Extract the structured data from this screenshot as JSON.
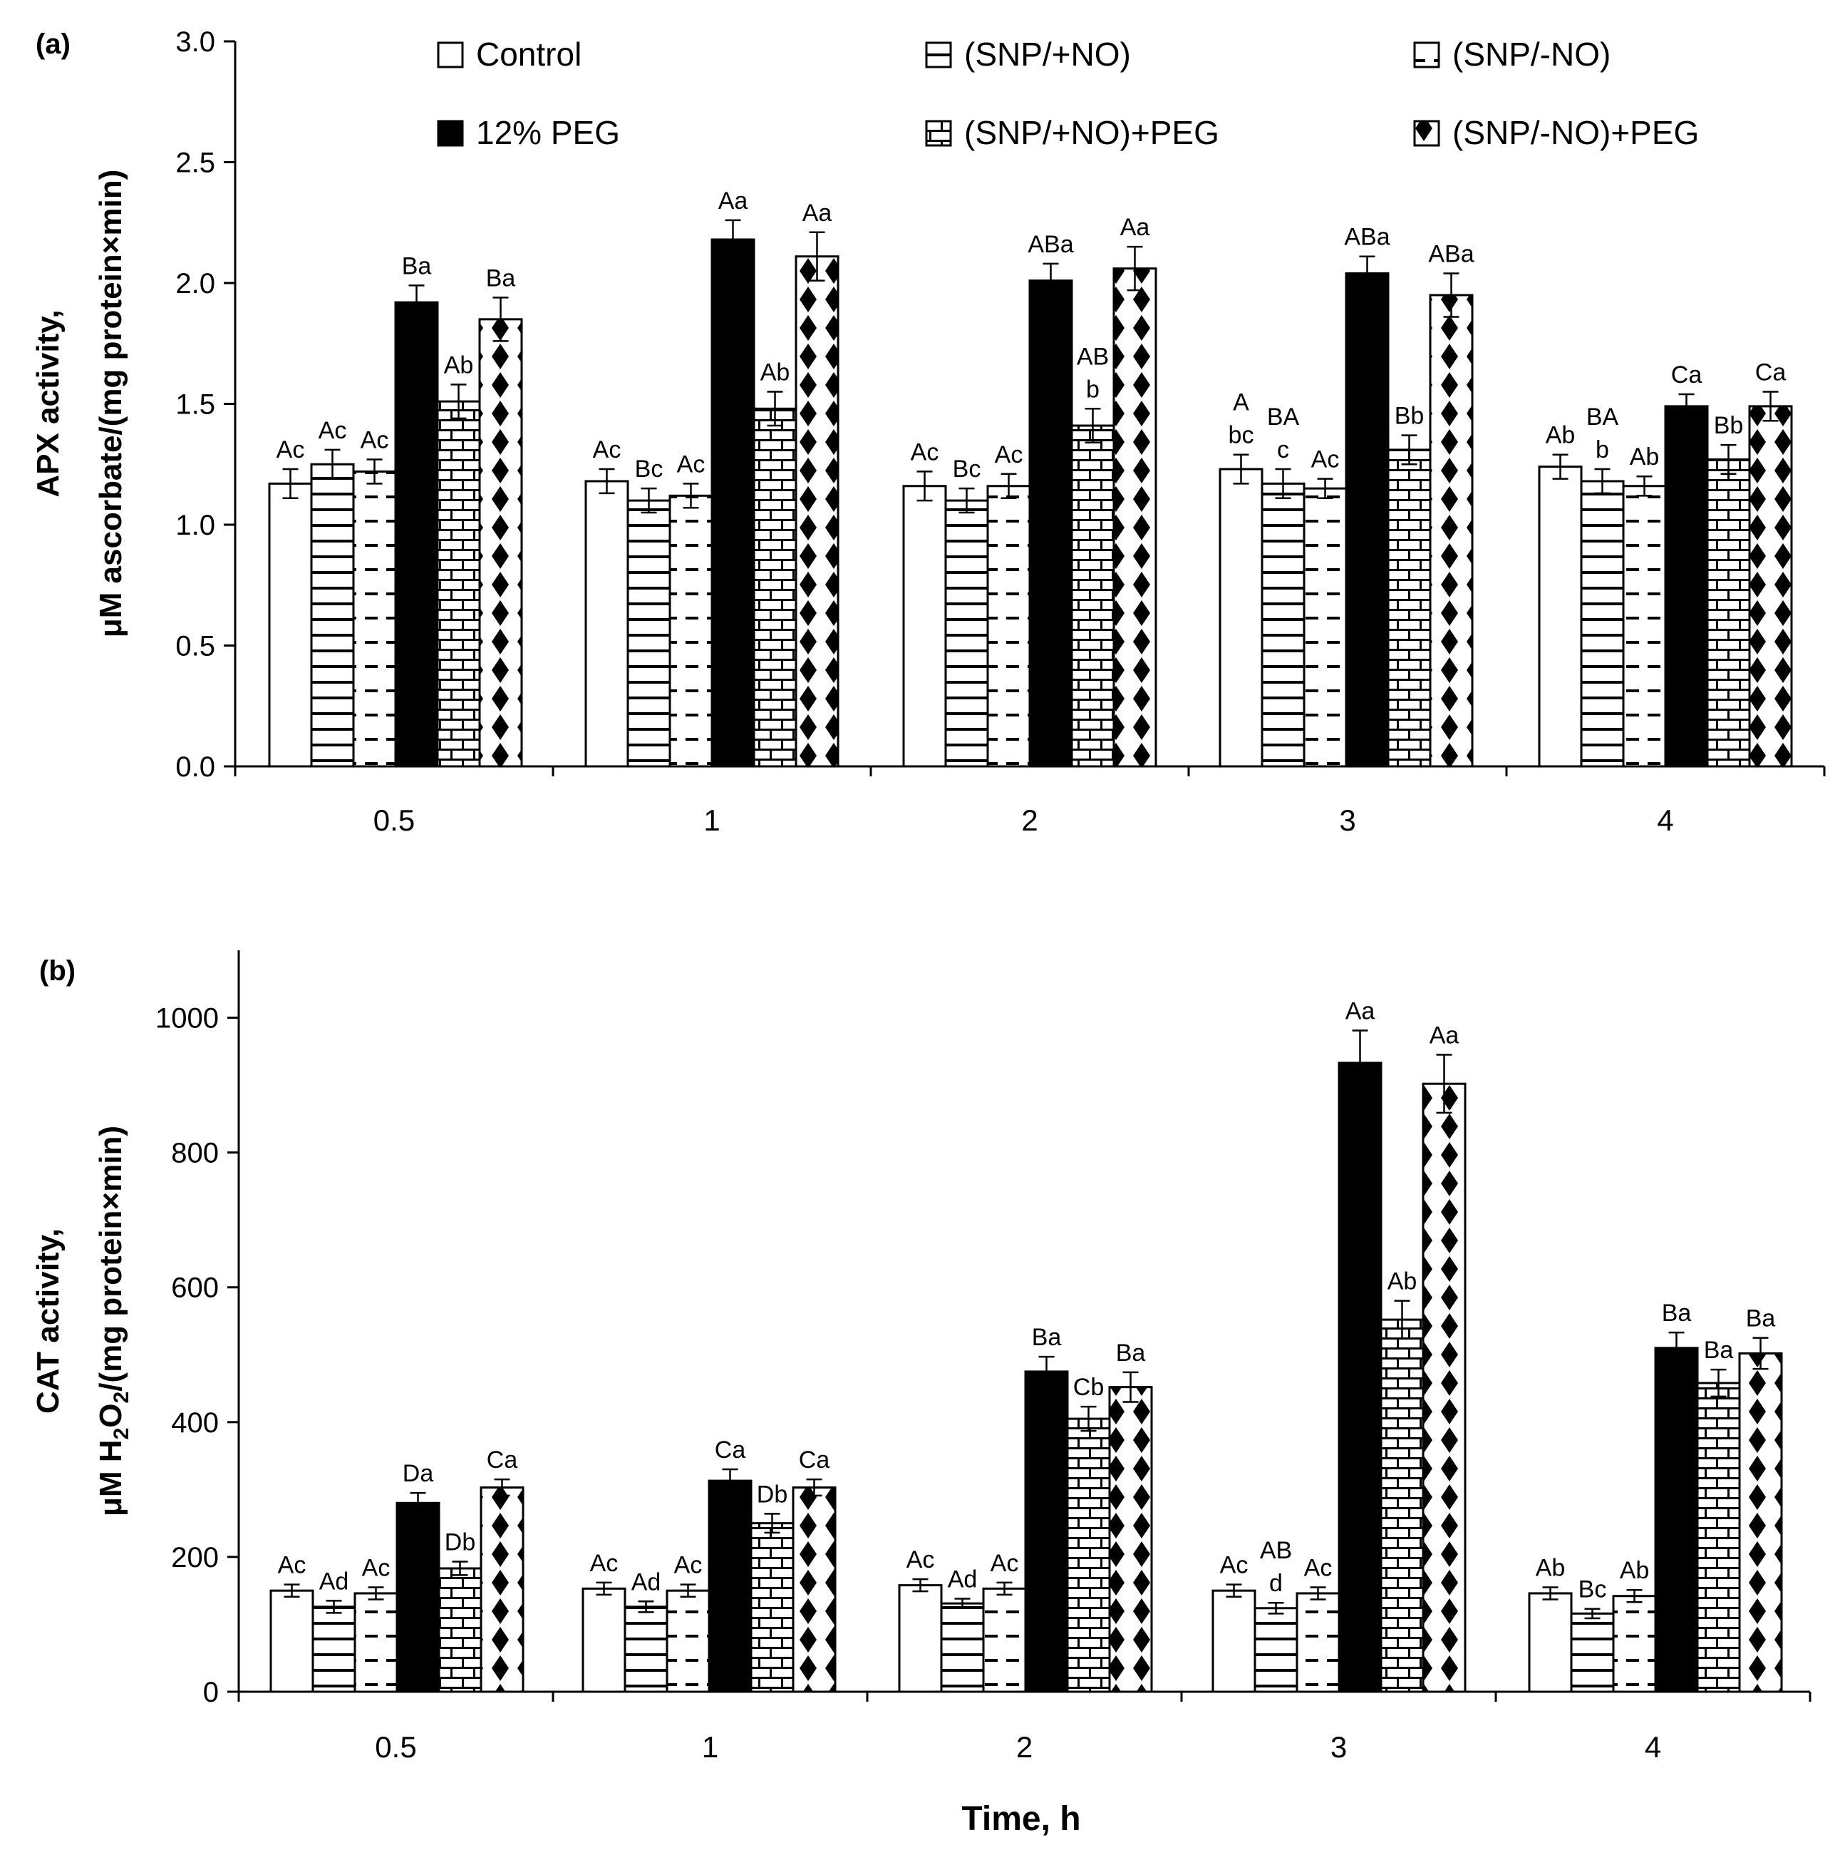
{
  "figure_title": "",
  "colors": {
    "ink": "#000000",
    "background": "#ffffff"
  },
  "legend": {
    "items": [
      {
        "label": "Control",
        "pattern": "white"
      },
      {
        "label": "(SNP/+NO)",
        "pattern": "hlines"
      },
      {
        "label": "(SNP/-NO)",
        "pattern": "dashes"
      },
      {
        "label": "12% PEG",
        "pattern": "black"
      },
      {
        "label": "(SNP/+NO)+PEG",
        "pattern": "bricks"
      },
      {
        "label": "(SNP/-NO)+PEG",
        "pattern": "diamonds"
      }
    ]
  },
  "chart_data": [
    {
      "panel_label": "(a)",
      "type": "bar",
      "title": "",
      "xlabel": "",
      "ylabel_line1": "APX activity,",
      "ylabel_line2": "μM ascorbate/(mg protein×min)",
      "ylim": [
        0,
        3.0
      ],
      "yticks": [
        "0.0",
        "0.5",
        "1.0",
        "1.5",
        "2.0",
        "2.5",
        "3.0"
      ],
      "ytick_values": [
        0,
        0.5,
        1.0,
        1.5,
        2.0,
        2.5,
        3.0
      ],
      "categories": [
        "0.5",
        "1",
        "2",
        "3",
        "4"
      ],
      "series": [
        {
          "name": "Control",
          "values": [
            1.17,
            1.18,
            1.16,
            1.23,
            1.24
          ],
          "errors": [
            0.06,
            0.05,
            0.06,
            0.06,
            0.05
          ],
          "labels": [
            [
              "Ac"
            ],
            [
              "Ac"
            ],
            [
              "Ac"
            ],
            [
              "A",
              "bc"
            ],
            [
              "Ab"
            ]
          ]
        },
        {
          "name": "(SNP/+NO)",
          "values": [
            1.25,
            1.1,
            1.1,
            1.17,
            1.18
          ],
          "errors": [
            0.06,
            0.05,
            0.05,
            0.06,
            0.05
          ],
          "labels": [
            [
              "Ac"
            ],
            [
              "Bc"
            ],
            [
              "Bc"
            ],
            [
              "BA",
              "c"
            ],
            [
              "BA",
              "b"
            ]
          ]
        },
        {
          "name": "(SNP/-NO)",
          "values": [
            1.22,
            1.12,
            1.16,
            1.15,
            1.16
          ],
          "errors": [
            0.05,
            0.05,
            0.05,
            0.04,
            0.04
          ],
          "labels": [
            [
              "Ac"
            ],
            [
              "Ac"
            ],
            [
              "Ac"
            ],
            [
              "Ac"
            ],
            [
              "Ab"
            ]
          ]
        },
        {
          "name": "12% PEG",
          "values": [
            1.92,
            2.18,
            2.01,
            2.04,
            1.49
          ],
          "errors": [
            0.07,
            0.08,
            0.07,
            0.07,
            0.05
          ],
          "labels": [
            [
              "Ba"
            ],
            [
              "Aa"
            ],
            [
              "ABa"
            ],
            [
              "ABa"
            ],
            [
              "Ca"
            ]
          ]
        },
        {
          "name": "(SNP/+NO)+PEG",
          "values": [
            1.51,
            1.48,
            1.41,
            1.31,
            1.27
          ],
          "errors": [
            0.07,
            0.07,
            0.07,
            0.06,
            0.06
          ],
          "labels": [
            [
              "Ab"
            ],
            [
              "Ab"
            ],
            [
              "AB",
              "b"
            ],
            [
              "Bb"
            ],
            [
              "Bb"
            ]
          ]
        },
        {
          "name": "(SNP/-NO)+PEG",
          "values": [
            1.85,
            2.11,
            2.06,
            1.95,
            1.49
          ],
          "errors": [
            0.09,
            0.1,
            0.09,
            0.09,
            0.06
          ],
          "labels": [
            [
              "Ba"
            ],
            [
              "Aa"
            ],
            [
              "Aa"
            ],
            [
              "ABa"
            ],
            [
              "Ca"
            ]
          ]
        }
      ]
    },
    {
      "panel_label": "(b)",
      "type": "bar",
      "title": "",
      "xlabel": "Time, h",
      "ylabel_line1": "CAT activity,",
      "ylabel_line2_prefix": "μM H",
      "ylabel_line2_sub1": "2",
      "ylabel_line2_mid": "O",
      "ylabel_line2_sub2": "2",
      "ylabel_line2_suffix": "/(mg protein×min)",
      "ylim": [
        0,
        1100
      ],
      "yticks": [
        "0",
        "200",
        "400",
        "600",
        "800",
        "1000"
      ],
      "ytick_values": [
        0,
        200,
        400,
        600,
        800,
        1000
      ],
      "categories": [
        "0.5",
        "1",
        "2",
        "3",
        "4"
      ],
      "series": [
        {
          "name": "Control",
          "values": [
            150,
            153,
            158,
            150,
            146
          ],
          "errors": [
            9,
            9,
            9,
            9,
            9
          ],
          "labels": [
            [
              "Ac"
            ],
            [
              "Ac"
            ],
            [
              "Ac"
            ],
            [
              "Ac"
            ],
            [
              "Ab"
            ]
          ]
        },
        {
          "name": "(SNP/+NO)",
          "values": [
            126,
            126,
            131,
            124,
            116
          ],
          "errors": [
            9,
            8,
            7,
            8,
            7
          ],
          "labels": [
            [
              "Ad"
            ],
            [
              "Ad"
            ],
            [
              "Ad"
            ],
            [
              "AB",
              "d"
            ],
            [
              "Bc"
            ]
          ]
        },
        {
          "name": "(SNP/-NO)",
          "values": [
            146,
            150,
            153,
            146,
            142
          ],
          "errors": [
            9,
            9,
            9,
            9,
            9
          ],
          "labels": [
            [
              "Ac"
            ],
            [
              "Ac"
            ],
            [
              "Ac"
            ],
            [
              "Ac"
            ],
            [
              "Ab"
            ]
          ]
        },
        {
          "name": "12% PEG",
          "values": [
            280,
            313,
            475,
            933,
            510
          ],
          "errors": [
            15,
            17,
            22,
            48,
            23
          ],
          "labels": [
            [
              "Da"
            ],
            [
              "Ca"
            ],
            [
              "Ba"
            ],
            [
              "Aa"
            ],
            [
              "Ba"
            ]
          ]
        },
        {
          "name": "(SNP/+NO)+PEG",
          "values": [
            183,
            250,
            405,
            552,
            458
          ],
          "errors": [
            10,
            14,
            18,
            28,
            20
          ],
          "labels": [
            [
              "Db"
            ],
            [
              "Db"
            ],
            [
              "Cb"
            ],
            [
              "Ab"
            ],
            [
              "Ba"
            ]
          ]
        },
        {
          "name": "(SNP/-NO)+PEG",
          "values": [
            303,
            303,
            452,
            902,
            502
          ],
          "errors": [
            12,
            12,
            22,
            43,
            23
          ],
          "labels": [
            [
              "Ca"
            ],
            [
              "Ca"
            ],
            [
              "Ba"
            ],
            [
              "Aa"
            ],
            [
              "Ba"
            ]
          ]
        }
      ]
    }
  ]
}
